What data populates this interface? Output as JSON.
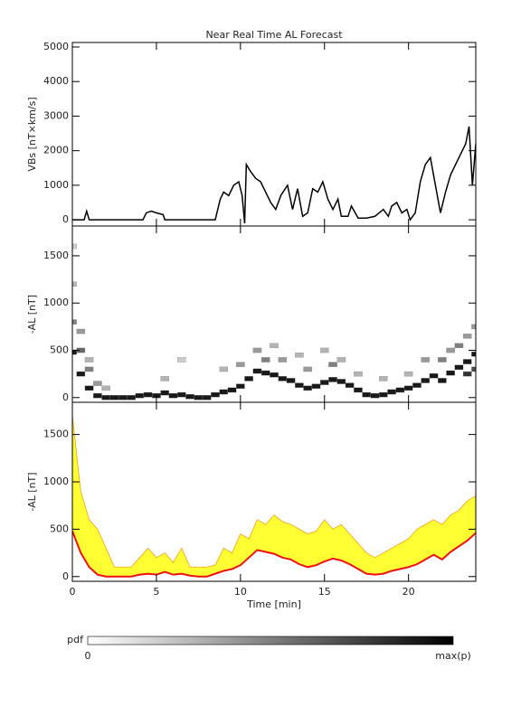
{
  "chart_data": [
    {
      "type": "line",
      "title": "Near Real Time AL Forecast",
      "ylabel": "VBs [nT×km/s]",
      "color": "#000000",
      "xlim": [
        0,
        24
      ],
      "xticks": [
        0,
        5,
        10,
        15,
        20
      ],
      "ylim": [
        -180,
        5130
      ],
      "yticks": [
        0,
        1000,
        2000,
        3000,
        4000,
        5000
      ],
      "x": [
        0,
        0.7,
        0.85,
        1.0,
        4.2,
        4.4,
        4.7,
        5.0,
        5.4,
        5.5,
        8.5,
        8.8,
        9.0,
        9.3,
        9.6,
        9.9,
        10.1,
        10.25,
        10.35,
        10.6,
        10.9,
        11.2,
        11.5,
        11.8,
        12.1,
        12.4,
        12.8,
        13.1,
        13.4,
        13.7,
        14.0,
        14.3,
        14.6,
        14.9,
        15.2,
        15.5,
        15.8,
        16.0,
        16.4,
        16.6,
        17.0,
        17.5,
        18.0,
        18.5,
        18.8,
        19.0,
        19.3,
        19.6,
        19.9,
        20.1,
        20.4,
        20.7,
        21.0,
        21.3,
        21.6,
        21.9,
        22.2,
        22.5,
        22.8,
        23.1,
        23.4,
        23.6,
        23.8,
        24.0
      ],
      "values": [
        0,
        0,
        250,
        0,
        0,
        200,
        250,
        200,
        150,
        0,
        0,
        600,
        800,
        700,
        1000,
        1100,
        700,
        -100,
        1600,
        1400,
        1200,
        1100,
        800,
        500,
        300,
        700,
        1000,
        300,
        900,
        100,
        200,
        900,
        800,
        1100,
        600,
        300,
        600,
        100,
        100,
        400,
        50,
        50,
        100,
        300,
        100,
        400,
        500,
        200,
        300,
        0,
        200,
        1100,
        1600,
        1800,
        1000,
        200,
        800,
        1300,
        1600,
        1900,
        2200,
        2700,
        1000,
        2200
      ]
    },
    {
      "type": "heatmap",
      "ylabel": "-AL [nT]",
      "xlim": [
        0,
        24
      ],
      "xticks": [
        0,
        5,
        10,
        15,
        20
      ],
      "ylim": [
        -50,
        1815
      ],
      "yticks": [
        0,
        500,
        1000,
        1500
      ],
      "x": [
        0,
        0.5,
        1,
        1.5,
        2,
        2.5,
        3,
        3.5,
        4,
        4.5,
        5,
        5.5,
        6,
        6.5,
        7,
        7.5,
        8,
        8.5,
        9,
        9.5,
        10,
        10.5,
        11,
        11.5,
        12,
        12.5,
        13,
        13.5,
        14,
        14.5,
        15,
        15.5,
        16,
        16.5,
        17,
        17.5,
        18,
        18.5,
        19,
        19.5,
        20,
        20.5,
        21,
        21.5,
        22,
        22.5,
        23,
        23.5,
        24,
        0,
        0,
        0,
        0.5,
        0.5,
        1,
        1,
        1.5,
        2,
        5.5,
        6.5,
        9,
        10,
        11,
        11.5,
        12,
        12.5,
        13.5,
        14,
        15,
        15.5,
        16,
        17,
        18.5,
        20,
        21,
        22,
        22.5,
        23,
        23.5,
        24,
        24,
        23.5
      ],
      "y": [
        480,
        250,
        100,
        20,
        0,
        0,
        0,
        0,
        20,
        30,
        20,
        50,
        20,
        30,
        10,
        0,
        0,
        30,
        60,
        80,
        120,
        200,
        280,
        260,
        240,
        200,
        180,
        130,
        100,
        120,
        160,
        190,
        170,
        130,
        80,
        30,
        20,
        30,
        60,
        80,
        100,
        130,
        180,
        230,
        180,
        260,
        320,
        380,
        460,
        800,
        1200,
        1600,
        500,
        700,
        300,
        400,
        150,
        100,
        200,
        400,
        300,
        350,
        500,
        400,
        550,
        400,
        450,
        300,
        500,
        350,
        400,
        250,
        200,
        250,
        400,
        400,
        500,
        550,
        650,
        750,
        300,
        250
      ],
      "values": [
        0.9,
        0.9,
        0.9,
        0.9,
        0.9,
        0.9,
        0.9,
        0.9,
        0.9,
        0.9,
        0.9,
        0.9,
        0.9,
        0.9,
        0.9,
        0.9,
        0.9,
        0.9,
        0.9,
        0.9,
        0.9,
        0.9,
        0.9,
        0.9,
        0.9,
        0.9,
        0.9,
        0.9,
        0.9,
        0.9,
        0.9,
        0.9,
        0.9,
        0.9,
        0.9,
        0.9,
        0.9,
        0.9,
        0.9,
        0.9,
        0.9,
        0.9,
        0.9,
        0.9,
        0.9,
        0.9,
        0.9,
        0.9,
        0.9,
        0.5,
        0.3,
        0.2,
        0.6,
        0.4,
        0.5,
        0.3,
        0.4,
        0.3,
        0.3,
        0.2,
        0.3,
        0.4,
        0.4,
        0.5,
        0.3,
        0.4,
        0.3,
        0.4,
        0.3,
        0.5,
        0.3,
        0.3,
        0.3,
        0.3,
        0.4,
        0.5,
        0.4,
        0.5,
        0.4,
        0.4,
        0.7,
        0.8
      ]
    },
    {
      "type": "band",
      "ylabel": "-AL [nT]",
      "xlabel": "Time [min]",
      "color": "#ee1111",
      "band_color": "#ffff33",
      "xlim": [
        0,
        24
      ],
      "xticks": [
        0,
        5,
        10,
        15,
        20
      ],
      "ylim": [
        -50,
        1840
      ],
      "yticks": [
        0,
        500,
        1000,
        1500
      ],
      "x": [
        0,
        0.5,
        1,
        1.5,
        2,
        2.5,
        3,
        3.5,
        4,
        4.5,
        5,
        5.5,
        6,
        6.5,
        7,
        7.5,
        8,
        8.5,
        9,
        9.5,
        10,
        10.5,
        11,
        11.5,
        12,
        12.5,
        13,
        13.5,
        14,
        14.5,
        15,
        15.5,
        16,
        16.5,
        17,
        17.5,
        18,
        18.5,
        19,
        19.5,
        20,
        20.5,
        21,
        21.5,
        22,
        22.5,
        23,
        23.5,
        24
      ],
      "values": [
        480,
        250,
        100,
        20,
        0,
        0,
        0,
        0,
        20,
        30,
        20,
        50,
        20,
        30,
        10,
        0,
        0,
        30,
        60,
        80,
        120,
        200,
        280,
        260,
        240,
        200,
        180,
        130,
        100,
        120,
        160,
        190,
        170,
        130,
        80,
        30,
        20,
        30,
        60,
        80,
        100,
        130,
        180,
        230,
        180,
        260,
        320,
        380,
        460
      ],
      "upper": [
        1700,
        900,
        600,
        500,
        300,
        100,
        100,
        100,
        200,
        300,
        200,
        250,
        150,
        300,
        100,
        100,
        100,
        120,
        300,
        250,
        450,
        400,
        600,
        550,
        650,
        580,
        550,
        500,
        450,
        480,
        600,
        500,
        550,
        450,
        350,
        250,
        200,
        250,
        300,
        350,
        400,
        500,
        550,
        600,
        550,
        650,
        700,
        800,
        850
      ]
    }
  ],
  "colorbar": {
    "label": "pdf",
    "min_label": "0",
    "max_label": "max(p)"
  }
}
